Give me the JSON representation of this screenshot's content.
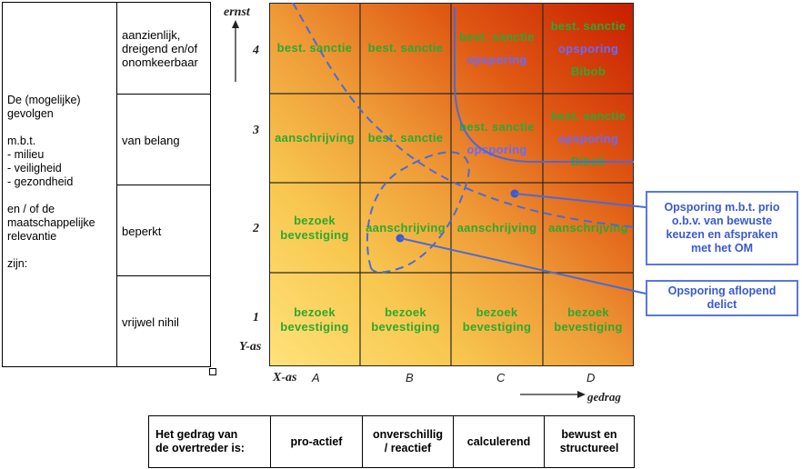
{
  "left_table": {
    "description": "De (mogelijke)\ngevolgen\n\nm.b.t.\n- milieu\n- veiligheid\n- gezondheid\n\nen / of de\nmaatschappelijke\nrelevantie\n\nzijn:",
    "levels": [
      "aanzienlijk,\ndreigend en/of\nonomkeerbaar",
      "van belang",
      "beperkt",
      "vrijwel nihil"
    ]
  },
  "axes": {
    "y_title": "ernst",
    "y_label": "Y-as",
    "x_label": "X-as",
    "x_title": "gedrag",
    "rows": [
      "4",
      "3",
      "2",
      "1"
    ],
    "cols": [
      "A",
      "B",
      "C",
      "D"
    ]
  },
  "grid": {
    "row4": [
      [
        {
          "t": "best. sanctie",
          "c": "green"
        }
      ],
      [
        {
          "t": "best. sanctie",
          "c": "green"
        }
      ],
      [
        {
          "t": "best. sanctie",
          "c": "green"
        },
        {
          "t": "opsporing",
          "c": "blue"
        }
      ],
      [
        {
          "t": "best. sanctie",
          "c": "green"
        },
        {
          "t": "opsporing",
          "c": "blue"
        },
        {
          "t": "Bibob",
          "c": "green"
        }
      ]
    ],
    "row3": [
      [
        {
          "t": "aanschrijving",
          "c": "green"
        }
      ],
      [
        {
          "t": "best. sanctie",
          "c": "green"
        }
      ],
      [
        {
          "t": "best. sanctie",
          "c": "green"
        },
        {
          "t": "opsporing",
          "c": "blue"
        }
      ],
      [
        {
          "t": "best. sanctie",
          "c": "green"
        },
        {
          "t": "opsporing",
          "c": "blue"
        },
        {
          "t": "Bibob",
          "c": "green"
        }
      ]
    ],
    "row2": [
      [
        {
          "t": "bezoek",
          "c": "green"
        },
        {
          "t": "bevestiging",
          "c": "green"
        }
      ],
      [
        {
          "t": "aanschrijving",
          "c": "green"
        }
      ],
      [
        {
          "t": "aanschrijving",
          "c": "green"
        }
      ],
      [
        {
          "t": "aanschrijving",
          "c": "green"
        }
      ]
    ],
    "row1": [
      [
        {
          "t": "bezoek",
          "c": "green"
        },
        {
          "t": "bevestiging",
          "c": "green"
        }
      ],
      [
        {
          "t": "bezoek",
          "c": "green"
        },
        {
          "t": "bevestiging",
          "c": "green"
        }
      ],
      [
        {
          "t": "bezoek",
          "c": "green"
        },
        {
          "t": "bevestiging",
          "c": "green"
        }
      ],
      [
        {
          "t": "bezoek",
          "c": "green"
        },
        {
          "t": "bevestiging",
          "c": "green"
        }
      ]
    ]
  },
  "callouts": {
    "prio": "Opsporing m.b.t. prio\no.b.v. van bewuste\nkeuzen en afspraken\nmet het OM",
    "aflopend": "Opsporing aflopend\ndelict"
  },
  "bottom_table": {
    "header": "Het gedrag van\nde overtreder is:",
    "cells": [
      "pro-actief",
      "onverschillig\n/ reactief",
      "calculerend",
      "bewust en\nstructureel"
    ]
  },
  "colors": {
    "green_text": "#2ea82e",
    "blue_text": "#6a6aff",
    "line_blue": "#4a6ad8",
    "grad_light": "#ffe27a",
    "grad_dark": "#c81e00"
  }
}
